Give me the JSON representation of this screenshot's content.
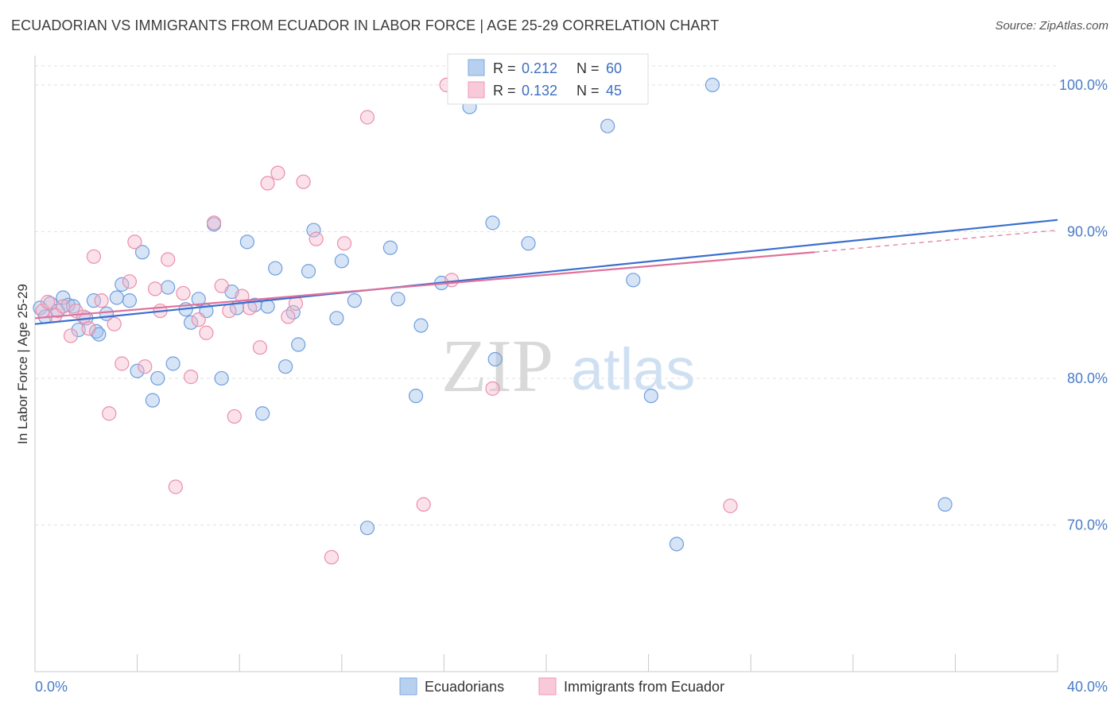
{
  "title": "ECUADORIAN VS IMMIGRANTS FROM ECUADOR IN LABOR FORCE | AGE 25-29 CORRELATION CHART",
  "source": "Source: ZipAtlas.com",
  "watermark": {
    "zip": "ZIP",
    "atlas": "atlas"
  },
  "chart_data": {
    "type": "scatter",
    "title": "ECUADORIAN VS IMMIGRANTS FROM ECUADOR IN LABOR FORCE | AGE 25-29 CORRELATION CHART",
    "xlabel": "",
    "ylabel": "In Labor Force | Age 25-29",
    "xlim": [
      0,
      40
    ],
    "ylim": [
      60,
      102
    ],
    "y_ticks": [
      70,
      80,
      90,
      100
    ],
    "y_tick_labels": [
      "70.0%",
      "80.0%",
      "90.0%",
      "100.0%"
    ],
    "x_tick_labels": [
      "0.0%",
      "40.0%"
    ],
    "grid": "horizontal dashed",
    "legend_position": "top-center",
    "legend": [
      {
        "r_label": "R = ",
        "r_value": "0.212",
        "n_label": "N = ",
        "n_value": "60"
      },
      {
        "r_label": "R = ",
        "r_value": "0.132",
        "n_label": "N = ",
        "n_value": "45"
      }
    ],
    "series": [
      {
        "name": "Ecuadorians",
        "color": "#9dbfea",
        "stroke": "#6f9fde",
        "trend_color": "#3a6fcf",
        "trend": {
          "x": [
            0,
            40
          ],
          "y": [
            83.7,
            90.8
          ]
        },
        "points": [
          [
            0.2,
            84.8
          ],
          [
            0.4,
            84.2
          ],
          [
            0.6,
            85.1
          ],
          [
            0.9,
            84.6
          ],
          [
            1.1,
            85.5
          ],
          [
            1.3,
            85.0
          ],
          [
            1.7,
            83.3
          ],
          [
            2.0,
            84.1
          ],
          [
            2.3,
            85.3
          ],
          [
            2.4,
            83.2
          ],
          [
            2.5,
            83.0
          ],
          [
            2.8,
            84.4
          ],
          [
            3.2,
            85.5
          ],
          [
            3.4,
            86.4
          ],
          [
            3.7,
            85.3
          ],
          [
            4.0,
            80.5
          ],
          [
            4.2,
            88.6
          ],
          [
            4.6,
            78.5
          ],
          [
            4.8,
            80.0
          ],
          [
            5.2,
            86.2
          ],
          [
            5.4,
            81.0
          ],
          [
            5.9,
            84.7
          ],
          [
            6.1,
            83.8
          ],
          [
            6.4,
            85.4
          ],
          [
            6.7,
            84.6
          ],
          [
            7.0,
            90.5
          ],
          [
            7.3,
            80.0
          ],
          [
            7.7,
            85.9
          ],
          [
            7.9,
            84.8
          ],
          [
            8.3,
            89.3
          ],
          [
            8.6,
            85.0
          ],
          [
            8.9,
            77.6
          ],
          [
            9.1,
            84.9
          ],
          [
            9.4,
            87.5
          ],
          [
            9.8,
            80.8
          ],
          [
            10.1,
            84.5
          ],
          [
            10.3,
            82.3
          ],
          [
            10.7,
            87.3
          ],
          [
            10.9,
            90.1
          ],
          [
            11.8,
            84.1
          ],
          [
            12.0,
            88.0
          ],
          [
            12.5,
            85.3
          ],
          [
            13.0,
            69.8
          ],
          [
            13.9,
            88.9
          ],
          [
            14.2,
            85.4
          ],
          [
            14.9,
            78.8
          ],
          [
            15.1,
            83.6
          ],
          [
            15.9,
            86.5
          ],
          [
            17.0,
            98.5
          ],
          [
            17.9,
            90.6
          ],
          [
            18.0,
            81.3
          ],
          [
            19.3,
            89.2
          ],
          [
            21.0,
            99.8
          ],
          [
            22.4,
            97.2
          ],
          [
            23.4,
            86.7
          ],
          [
            24.1,
            78.8
          ],
          [
            25.1,
            68.7
          ],
          [
            26.5,
            100.0
          ],
          [
            35.6,
            71.4
          ],
          [
            1.5,
            84.9
          ]
        ]
      },
      {
        "name": "Immigrants from Ecuador",
        "color": "#f5b8cb",
        "stroke": "#ea8fab",
        "trend_color": "#e0719a",
        "trend": {
          "x": [
            0,
            30.5
          ],
          "y": [
            84.1,
            88.6
          ]
        },
        "trend_dashed": {
          "x": [
            30.5,
            40
          ],
          "y": [
            88.6,
            90.1
          ]
        },
        "points": [
          [
            0.3,
            84.6
          ],
          [
            0.5,
            85.2
          ],
          [
            0.8,
            84.3
          ],
          [
            1.1,
            84.9
          ],
          [
            1.4,
            82.9
          ],
          [
            1.6,
            84.6
          ],
          [
            1.9,
            84.2
          ],
          [
            2.1,
            83.4
          ],
          [
            2.3,
            88.3
          ],
          [
            2.6,
            85.3
          ],
          [
            2.9,
            77.6
          ],
          [
            3.1,
            83.7
          ],
          [
            3.4,
            81.0
          ],
          [
            3.7,
            86.6
          ],
          [
            3.9,
            89.3
          ],
          [
            4.3,
            80.8
          ],
          [
            4.7,
            86.1
          ],
          [
            4.9,
            84.6
          ],
          [
            5.2,
            88.1
          ],
          [
            5.5,
            72.6
          ],
          [
            5.8,
            85.8
          ],
          [
            6.1,
            80.1
          ],
          [
            6.4,
            84.0
          ],
          [
            6.7,
            83.1
          ],
          [
            7.0,
            90.6
          ],
          [
            7.3,
            86.3
          ],
          [
            7.6,
            84.6
          ],
          [
            7.8,
            77.4
          ],
          [
            8.1,
            85.6
          ],
          [
            8.4,
            84.8
          ],
          [
            8.8,
            82.1
          ],
          [
            9.1,
            93.3
          ],
          [
            9.5,
            94.0
          ],
          [
            9.9,
            84.2
          ],
          [
            10.2,
            85.1
          ],
          [
            10.5,
            93.4
          ],
          [
            11.0,
            89.5
          ],
          [
            11.6,
            67.8
          ],
          [
            12.1,
            89.2
          ],
          [
            13.0,
            97.8
          ],
          [
            15.2,
            71.4
          ],
          [
            16.1,
            100.0
          ],
          [
            16.3,
            86.7
          ],
          [
            17.9,
            79.3
          ],
          [
            27.2,
            71.3
          ]
        ]
      }
    ]
  }
}
